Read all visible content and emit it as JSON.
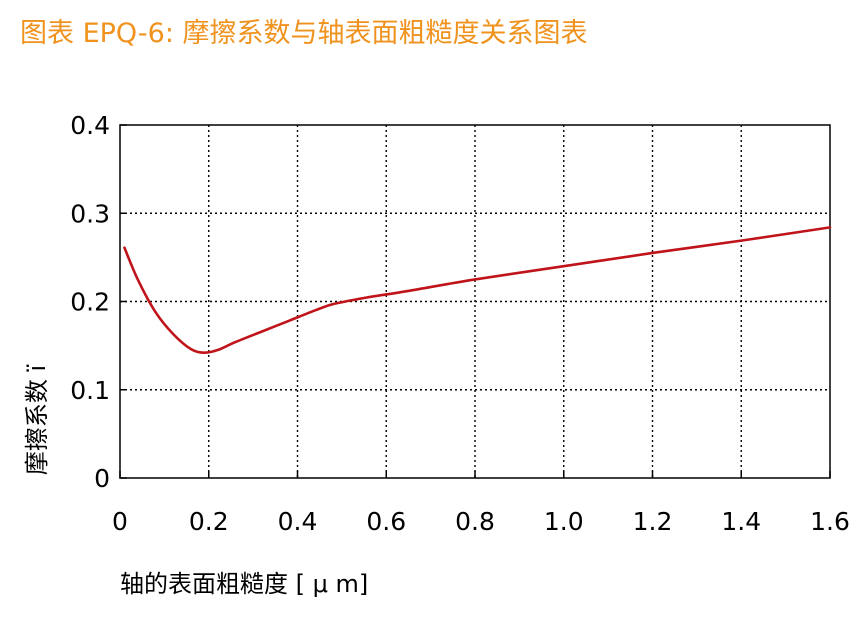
{
  "figure": {
    "title": "图表 EPQ-6: 摩擦系数与轴表面粗糙度关系图表"
  },
  "colors": {
    "title": "#f0931e",
    "line": "#c0141b",
    "axis": "#000000",
    "grid": "#000000"
  },
  "chart_data": {
    "type": "line",
    "title": "",
    "xlabel": "轴的表面粗糙度 [ μ m]",
    "ylabel": "摩擦系数 ï",
    "xlim": [
      0,
      1.6
    ],
    "ylim": [
      0,
      0.4
    ],
    "grid": true,
    "x_ticks": [
      0,
      0.2,
      0.4,
      0.6,
      0.8,
      1.0,
      1.2,
      1.4,
      1.6
    ],
    "x_tick_labels": [
      "0",
      "0.2",
      "0.4",
      "0.6",
      "0.8",
      "1.0",
      "1.2",
      "1.4",
      "1.6"
    ],
    "y_ticks": [
      0,
      0.1,
      0.2,
      0.3,
      0.4
    ],
    "y_tick_labels": [
      "0",
      "0.1",
      "0.2",
      "0.3",
      "0.4"
    ],
    "series": [
      {
        "x": [
          0.01,
          0.04,
          0.08,
          0.12,
          0.16,
          0.19,
          0.22,
          0.26,
          0.32,
          0.38,
          0.44,
          0.48,
          0.55,
          0.65,
          0.8,
          1.0,
          1.2,
          1.4,
          1.6
        ],
        "y": [
          0.261,
          0.225,
          0.188,
          0.163,
          0.146,
          0.142,
          0.145,
          0.154,
          0.166,
          0.178,
          0.19,
          0.197,
          0.204,
          0.212,
          0.225,
          0.24,
          0.255,
          0.269,
          0.284
        ]
      }
    ]
  }
}
